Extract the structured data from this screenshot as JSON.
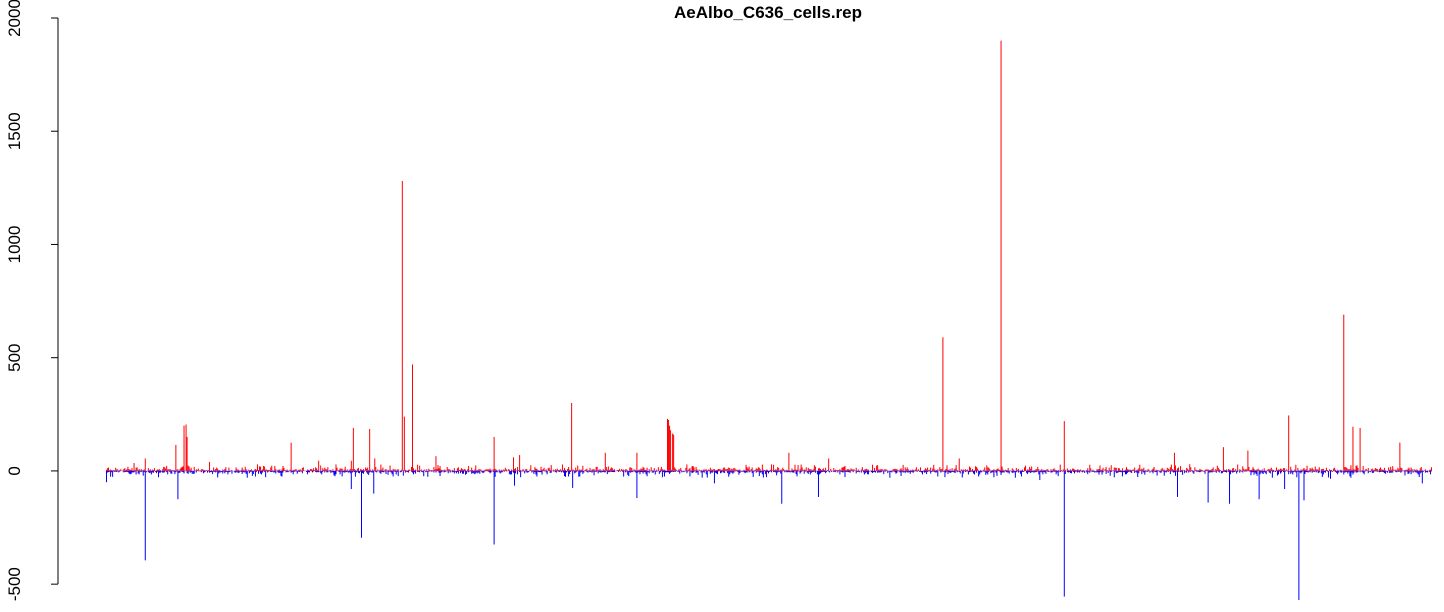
{
  "chart_data": {
    "type": "bar",
    "title": "AeAlbo_C636_cells.rep",
    "xlabel": "",
    "ylabel": "",
    "ylim": [
      -570,
      2000
    ],
    "y_ticks": [
      -500,
      0,
      500,
      1000,
      1500,
      2000
    ],
    "y_tick_labels": [
      "-500",
      "0",
      "500",
      "1000",
      "1500",
      "2000"
    ],
    "x_axis_shown": false,
    "grid": false,
    "bar_count": 1300,
    "colors": {
      "positive": "#ff0000",
      "negative": "#0000ff"
    },
    "series": [
      {
        "color": "#ff0000",
        "direction": "up",
        "peaks": [
          [
            27,
            35
          ],
          [
            38,
            55
          ],
          [
            68,
            115
          ],
          [
            76,
            200
          ],
          [
            78,
            205
          ],
          [
            79,
            150
          ],
          [
            101,
            40
          ],
          [
            181,
            125
          ],
          [
            208,
            45
          ],
          [
            240,
            45
          ],
          [
            242,
            190
          ],
          [
            258,
            185
          ],
          [
            263,
            55
          ],
          [
            290,
            1280
          ],
          [
            292,
            240
          ],
          [
            300,
            470
          ],
          [
            323,
            65
          ],
          [
            380,
            150
          ],
          [
            399,
            60
          ],
          [
            405,
            70
          ],
          [
            456,
            300
          ],
          [
            489,
            80
          ],
          [
            520,
            80
          ],
          [
            550,
            230
          ],
          [
            551,
            225
          ],
          [
            552,
            200
          ],
          [
            553,
            180
          ],
          [
            555,
            165
          ],
          [
            556,
            160
          ],
          [
            669,
            80
          ],
          [
            708,
            55
          ],
          [
            820,
            590
          ],
          [
            836,
            55
          ],
          [
            877,
            1900
          ],
          [
            939,
            220
          ],
          [
            1047,
            80
          ],
          [
            1095,
            105
          ],
          [
            1119,
            90
          ],
          [
            1159,
            245
          ],
          [
            1213,
            690
          ],
          [
            1222,
            195
          ],
          [
            1229,
            190
          ],
          [
            1268,
            125
          ]
        ]
      },
      {
        "color": "#0000ff",
        "direction": "down",
        "peaks": [
          [
            0,
            -50
          ],
          [
            38,
            -395
          ],
          [
            70,
            -125
          ],
          [
            240,
            -80
          ],
          [
            250,
            -295
          ],
          [
            262,
            -100
          ],
          [
            380,
            -325
          ],
          [
            400,
            -65
          ],
          [
            457,
            -75
          ],
          [
            520,
            -120
          ],
          [
            596,
            -55
          ],
          [
            662,
            -145
          ],
          [
            698,
            -115
          ],
          [
            915,
            -40
          ],
          [
            939,
            -555
          ],
          [
            1050,
            -115
          ],
          [
            1080,
            -140
          ],
          [
            1101,
            -145
          ],
          [
            1130,
            -125
          ],
          [
            1155,
            -80
          ],
          [
            1169,
            -570
          ],
          [
            1174,
            -130
          ],
          [
            1200,
            -35
          ],
          [
            1220,
            -30
          ],
          [
            1290,
            -55
          ]
        ]
      }
    ]
  }
}
